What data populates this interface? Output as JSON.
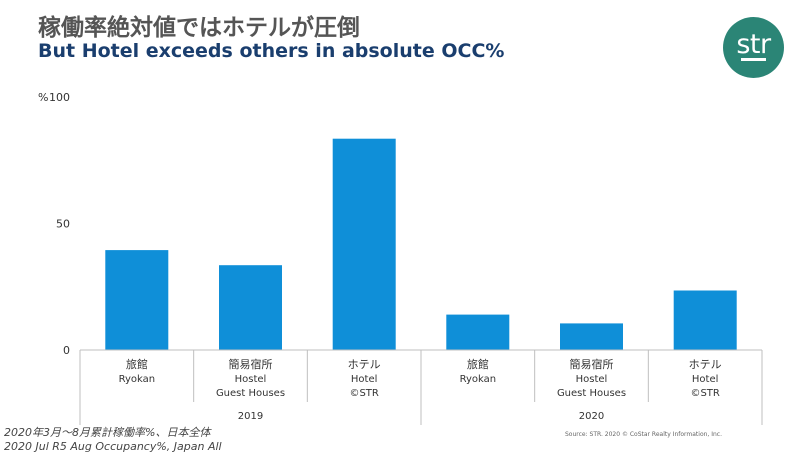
{
  "header": {
    "title_jp": "稼働率絶対値ではホテルが圧倒",
    "title_en": "But Hotel exceeds others in absolute OCC%"
  },
  "logo": {
    "text": "str",
    "color": "#2b8576"
  },
  "chart_data": {
    "type": "bar",
    "ylabel": "%",
    "ylim": [
      0,
      100
    ],
    "yticks": [
      "0",
      "50",
      "100"
    ],
    "bar_color": "#0f8fd8",
    "categories": [
      {
        "lines": [
          "旅館",
          "Ryokan"
        ],
        "group": "2019"
      },
      {
        "lines": [
          "簡易宿所",
          "Hostel",
          "Guest Houses"
        ],
        "group": "2019"
      },
      {
        "lines": [
          "ホテル",
          "Hotel",
          "©STR"
        ],
        "group": "2019"
      },
      {
        "lines": [
          "旅館",
          "Ryokan"
        ],
        "group": "2020"
      },
      {
        "lines": [
          "簡易宿所",
          "Hostel",
          "Guest Houses"
        ],
        "group": "2020"
      },
      {
        "lines": [
          "ホテル",
          "Hotel",
          "©STR"
        ],
        "group": "2020"
      }
    ],
    "values": [
      39.5,
      33.5,
      83.5,
      14,
      10.5,
      23.5
    ],
    "groups": [
      "2019",
      "2020"
    ]
  },
  "footnotes": {
    "jp": "2020年3月～8月累計稼働率%、日本全体",
    "en": "2020 Jul R5 Aug Occupancy%, Japan All"
  },
  "source": "Source: STR. 2020 © CoStar Realty Information, Inc."
}
